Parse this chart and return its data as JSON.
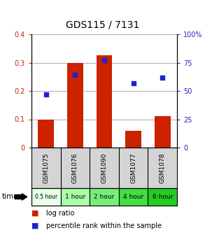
{
  "title": "GDS115 / 7131",
  "samples": [
    "GSM1075",
    "GSM1076",
    "GSM1090",
    "GSM1077",
    "GSM1078"
  ],
  "time_labels": [
    "0.5 hour",
    "1 hour",
    "2 hour",
    "4 hour",
    "6 hour"
  ],
  "log_ratio": [
    0.1,
    0.3,
    0.325,
    0.06,
    0.11
  ],
  "percentile_rank": [
    47,
    64,
    77,
    57,
    62
  ],
  "bar_color": "#cc2200",
  "dot_color": "#2222cc",
  "ylim_left": [
    0,
    0.4
  ],
  "ylim_right": [
    0,
    100
  ],
  "yticks_left": [
    0,
    0.1,
    0.2,
    0.3,
    0.4
  ],
  "ytick_labels_left": [
    "0",
    "0.1",
    "0.2",
    "0.3",
    "0.4"
  ],
  "yticks_right": [
    0,
    25,
    50,
    75,
    100
  ],
  "ytick_labels_right": [
    "0",
    "25",
    "50",
    "75",
    "100%"
  ],
  "time_colors": [
    "#e8ffe8",
    "#99ee99",
    "#66dd66",
    "#33cc33",
    "#00bb00"
  ],
  "legend_log_ratio": "log ratio",
  "legend_percentile": "percentile rank within the sample"
}
